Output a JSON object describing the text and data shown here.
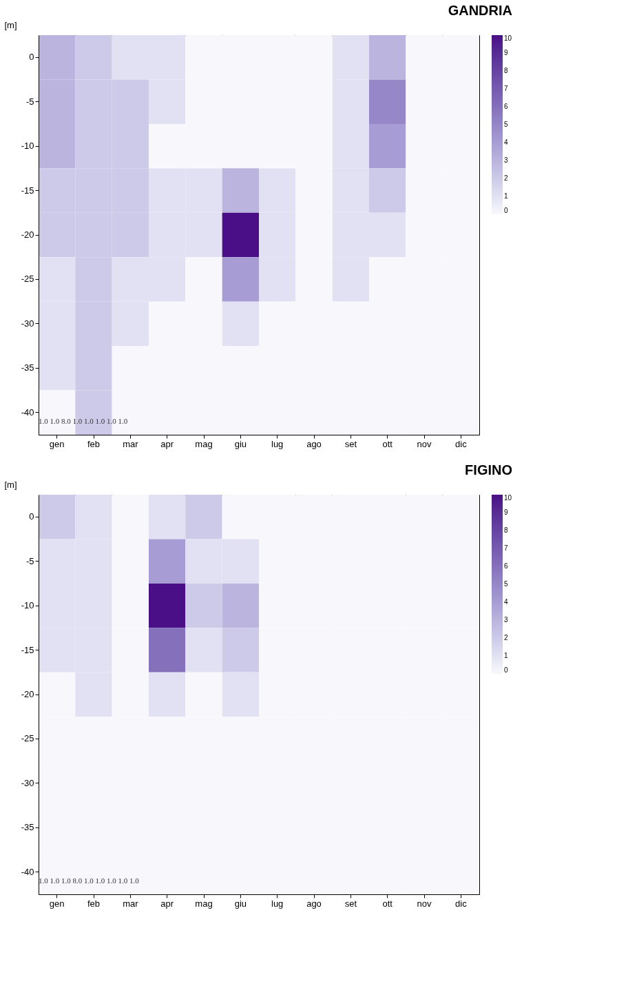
{
  "chart_data": [
    {
      "type": "heatmap",
      "title": "GANDRIA",
      "ylabel": "[m]",
      "categories": [
        "gen",
        "feb",
        "mar",
        "apr",
        "mag",
        "giu",
        "lug",
        "ago",
        "set",
        "ott",
        "nov",
        "dic"
      ],
      "y_categories": [
        "0",
        "-5",
        "-10",
        "-15",
        "-20",
        "-25",
        "-30",
        "-35",
        "-40"
      ],
      "cells": [
        [
          3,
          2,
          1,
          1,
          0,
          0,
          0,
          0,
          1,
          3,
          0,
          0
        ],
        [
          3,
          2,
          2,
          1,
          0,
          0,
          0,
          0,
          1,
          5,
          0,
          0
        ],
        [
          3,
          2,
          2,
          0,
          0,
          0,
          0,
          0,
          1,
          4,
          0,
          0
        ],
        [
          2,
          2,
          2,
          1,
          1,
          3,
          1,
          0,
          1,
          2,
          0,
          0
        ],
        [
          2,
          2,
          2,
          1,
          1,
          10,
          1,
          0,
          1,
          1,
          0,
          0
        ],
        [
          1,
          2,
          1,
          1,
          0,
          4,
          1,
          0,
          1,
          0,
          0,
          0
        ],
        [
          1,
          2,
          1,
          0,
          0,
          1,
          0,
          0,
          0,
          0,
          0,
          0
        ],
        [
          1,
          2,
          0,
          0,
          0,
          0,
          0,
          0,
          0,
          0,
          0,
          0
        ],
        [
          0,
          2,
          0,
          0,
          0,
          0,
          0,
          0,
          0,
          0,
          0,
          0
        ]
      ],
      "clim": [
        0,
        10
      ],
      "cticks": [
        0,
        1,
        2,
        3,
        4,
        5,
        6,
        7,
        8,
        9,
        10
      ],
      "annotations": [
        "1.0",
        "1.0",
        "8.0",
        "1.0",
        "1.0",
        "1.0",
        "1.0",
        "1.0"
      ]
    },
    {
      "type": "heatmap",
      "title": "FIGINO",
      "ylabel": "[m]",
      "categories": [
        "gen",
        "feb",
        "mar",
        "apr",
        "mag",
        "giu",
        "lug",
        "ago",
        "set",
        "ott",
        "nov",
        "dic"
      ],
      "y_categories": [
        "0",
        "-5",
        "-10",
        "-15",
        "-20",
        "-25",
        "-30",
        "-35",
        "-40"
      ],
      "cells": [
        [
          2,
          1,
          0,
          1,
          2,
          0,
          0,
          0,
          0,
          0,
          0,
          0
        ],
        [
          1,
          1,
          0,
          4,
          1,
          1,
          0,
          0,
          0,
          0,
          0,
          0
        ],
        [
          1,
          1,
          0,
          10,
          2,
          3,
          0,
          0,
          0,
          0,
          0,
          0
        ],
        [
          1,
          1,
          0,
          6,
          1,
          2,
          0,
          0,
          0,
          0,
          0,
          0
        ],
        [
          0,
          1,
          0,
          1,
          0,
          1,
          0,
          0,
          0,
          0,
          0,
          0
        ],
        [
          0,
          0,
          0,
          0,
          0,
          0,
          0,
          0,
          0,
          0,
          0,
          0
        ],
        [
          0,
          0,
          0,
          0,
          0,
          0,
          0,
          0,
          0,
          0,
          0,
          0
        ],
        [
          0,
          0,
          0,
          0,
          0,
          0,
          0,
          0,
          0,
          0,
          0,
          0
        ],
        [
          0,
          0,
          0,
          0,
          0,
          0,
          0,
          0,
          0,
          0,
          0,
          0
        ]
      ],
      "clim": [
        0,
        10
      ],
      "cticks": [
        0,
        1,
        2,
        3,
        4,
        5,
        6,
        7,
        8,
        9,
        10
      ],
      "annotations": [
        "1.0",
        "1.0",
        "1.0",
        "8.0",
        "1.0",
        "1.0",
        "1.0",
        "1.0",
        "1.0"
      ]
    }
  ]
}
